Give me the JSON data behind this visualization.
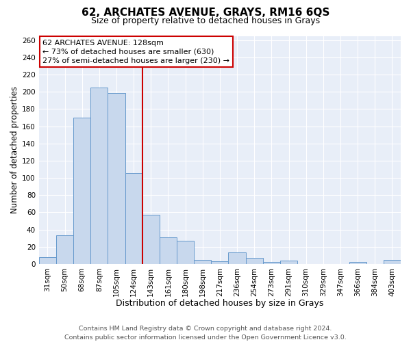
{
  "title": "62, ARCHATES AVENUE, GRAYS, RM16 6QS",
  "subtitle": "Size of property relative to detached houses in Grays",
  "xlabel": "Distribution of detached houses by size in Grays",
  "ylabel": "Number of detached properties",
  "bar_labels": [
    "31sqm",
    "50sqm",
    "68sqm",
    "87sqm",
    "105sqm",
    "124sqm",
    "143sqm",
    "161sqm",
    "180sqm",
    "198sqm",
    "217sqm",
    "236sqm",
    "254sqm",
    "273sqm",
    "291sqm",
    "310sqm",
    "329sqm",
    "347sqm",
    "366sqm",
    "384sqm",
    "403sqm"
  ],
  "bar_values": [
    8,
    33,
    170,
    205,
    199,
    106,
    57,
    31,
    27,
    5,
    3,
    13,
    7,
    2,
    4,
    0,
    0,
    0,
    2,
    0,
    5
  ],
  "bar_color": "#c8d8ed",
  "bar_edgecolor": "#6699cc",
  "vline_color": "#cc0000",
  "annotation_title": "62 ARCHATES AVENUE: 128sqm",
  "annotation_line1": "← 73% of detached houses are smaller (630)",
  "annotation_line2": "27% of semi-detached houses are larger (230) →",
  "annotation_box_facecolor": "#ffffff",
  "annotation_box_edgecolor": "#cc0000",
  "ylim": [
    0,
    265
  ],
  "yticks": [
    0,
    20,
    40,
    60,
    80,
    100,
    120,
    140,
    160,
    180,
    200,
    220,
    240,
    260
  ],
  "footer_line1": "Contains HM Land Registry data © Crown copyright and database right 2024.",
  "footer_line2": "Contains public sector information licensed under the Open Government Licence v3.0.",
  "plot_bg_color": "#e8eef8",
  "fig_bg_color": "#ffffff",
  "grid_color": "#ffffff",
  "title_fontsize": 11,
  "subtitle_fontsize": 9,
  "xlabel_fontsize": 9,
  "ylabel_fontsize": 8.5,
  "tick_fontsize": 7.5,
  "annotation_fontsize": 8,
  "footer_fontsize": 6.8
}
